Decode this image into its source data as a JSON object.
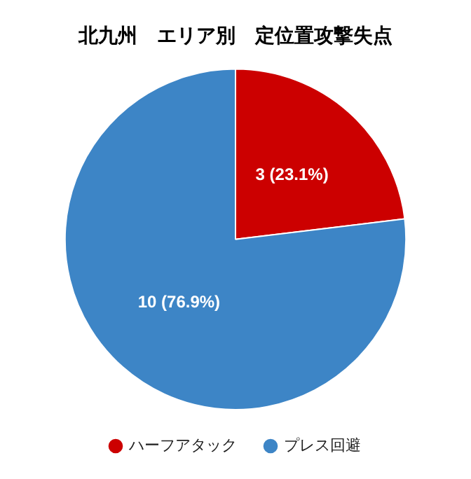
{
  "chart_data": {
    "type": "pie",
    "title": "北九州　エリア別　定位置攻撃失点",
    "categories": [
      "ハーフアタック",
      "プレス回避"
    ],
    "values": [
      3,
      10
    ],
    "colors": [
      "#cc0000",
      "#3d85c6"
    ],
    "value_labels": [
      "3 (23.1%)",
      "10 (76.9%)"
    ],
    "legend": "bottom"
  }
}
